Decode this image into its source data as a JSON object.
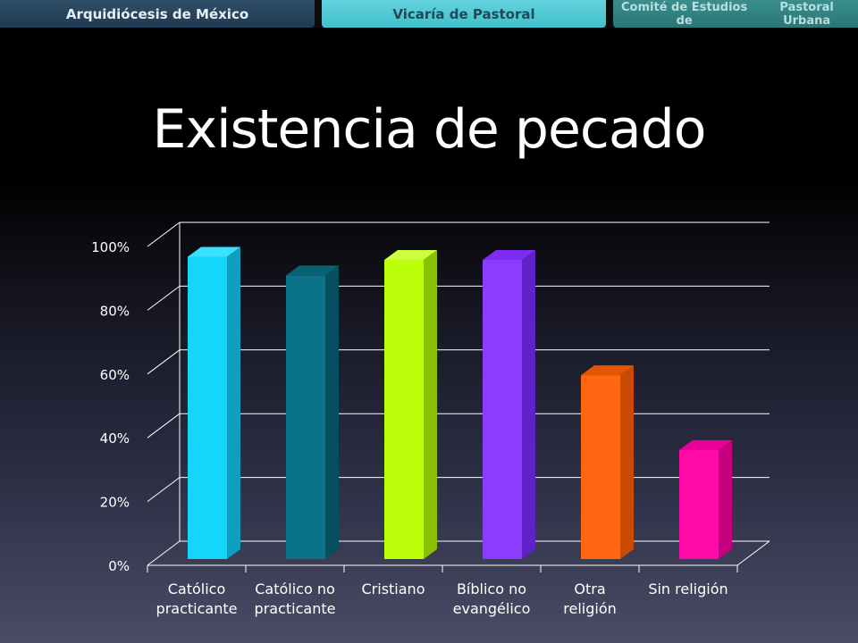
{
  "banner": {
    "left": "Arquidiócesis de México",
    "center": "Vicaría de Pastoral",
    "right_line1": "Comité de Estudios de",
    "right_line2": "Pastoral Urbana"
  },
  "colors": {
    "gridline": "#ffffff",
    "text": "#ffffff"
  },
  "chart_data": {
    "type": "bar",
    "title": "Existencia de pecado",
    "categories": [
      [
        "Católico",
        "practicante"
      ],
      [
        "Católico no",
        "practicante"
      ],
      [
        "Cristiano"
      ],
      [
        "Bíblico no",
        "evangélico"
      ],
      [
        "Otra",
        "religión"
      ],
      [
        "Sin religión"
      ]
    ],
    "values": [
      97,
      91,
      96,
      96,
      59,
      35
    ],
    "colors": [
      "#14d6fb",
      "#0a7289",
      "#bcff0a",
      "#8a3cff",
      "#ff6610",
      "#ff0aa8"
    ],
    "side_colors": [
      "#0d9fbd",
      "#054f60",
      "#8bc100",
      "#6121c9",
      "#c94a00",
      "#c4007e"
    ],
    "top_colors": [
      "#3ae0ff",
      "#0b5f73",
      "#cdff3d",
      "#7d2df2",
      "#e55500",
      "#ea0099"
    ],
    "yticks": [
      "0%",
      "20%",
      "40%",
      "60%",
      "80%",
      "100%"
    ],
    "ylim": [
      0,
      100
    ],
    "grid": true,
    "style": "3d-column"
  }
}
